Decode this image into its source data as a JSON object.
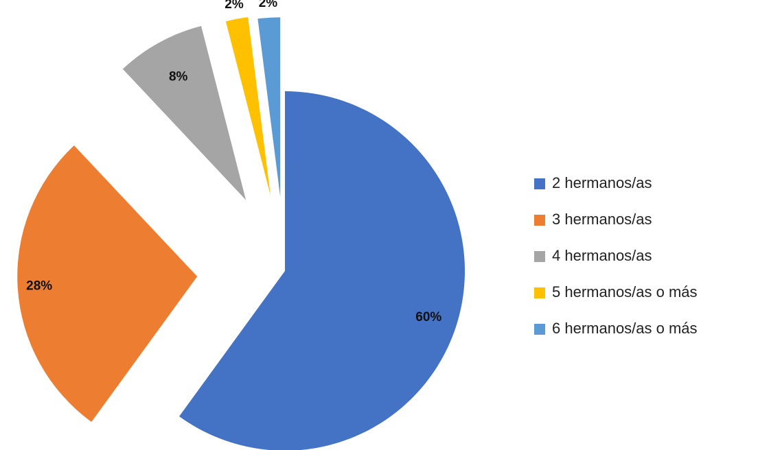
{
  "chart_data": {
    "type": "pie",
    "categories": [
      "2 hermanos/as",
      "3 hermanos/as",
      "4 hermanos/as",
      "5 hermanos/as o más",
      "6 hermanos/as o más"
    ],
    "values": [
      60,
      28,
      8,
      2,
      2
    ],
    "value_labels": [
      "60%",
      "28%",
      "8%",
      "2%",
      "2%"
    ],
    "colors": [
      "#4472c4",
      "#ed7d31",
      "#a5a5a5",
      "#ffc000",
      "#5b9bd5"
    ],
    "legend": "right"
  }
}
